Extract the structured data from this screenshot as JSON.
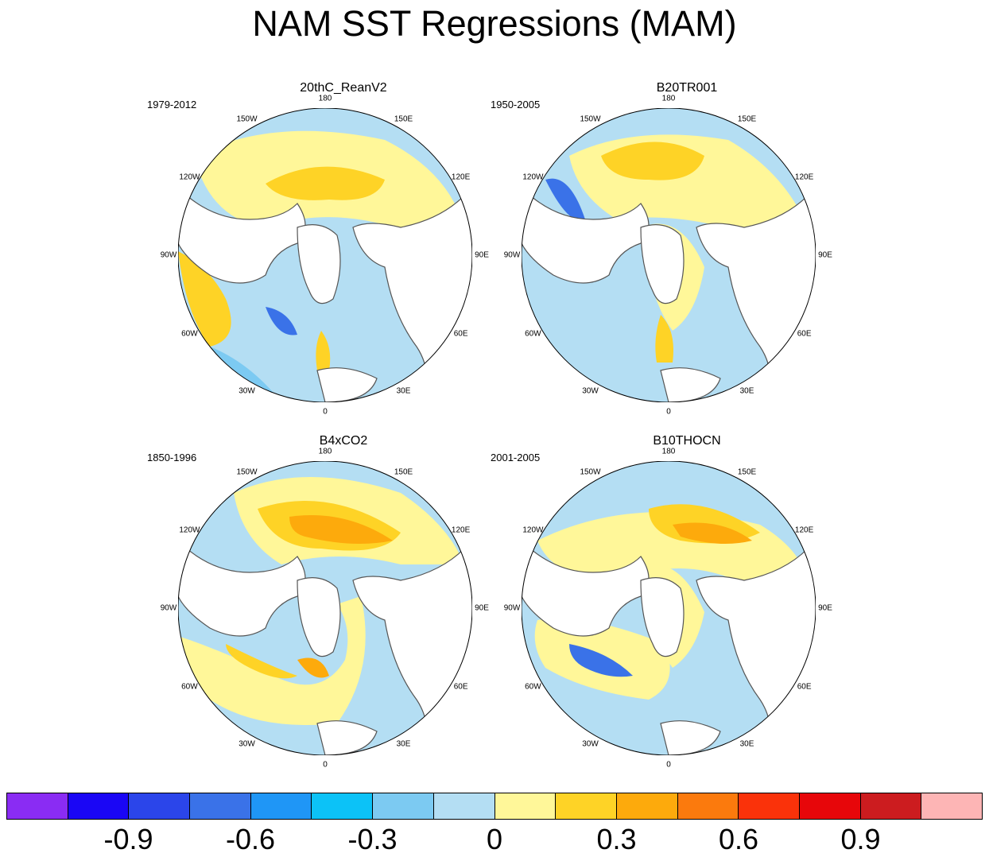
{
  "title": "NAM SST Regressions (MAM)",
  "panels": [
    {
      "name": "20thC_ReanV2",
      "period": "1979-2012"
    },
    {
      "name": "B20TR001",
      "period": "1950-2005"
    },
    {
      "name": "B4xCO2",
      "period": "1850-1996"
    },
    {
      "name": "B10THOCN",
      "period": "2001-2005"
    }
  ],
  "longitude_labels": {
    "lon_180": "180",
    "lon_150e": "150E",
    "lon_120e": "120E",
    "lon_90e": "90E",
    "lon_60e": "60E",
    "lon_30e": "30E",
    "lon_0": "0",
    "lon_30w": "30W",
    "lon_60w": "60W",
    "lon_90w": "90W",
    "lon_120w": "120W",
    "lon_150w": "150W"
  },
  "colorbar": {
    "colors": [
      "#8a2cf3",
      "#1a06f5",
      "#2b45ea",
      "#3a72e8",
      "#1f96f6",
      "#0cc2f7",
      "#7ccaf2",
      "#b4def3",
      "#fff799",
      "#fed326",
      "#fdaa0c",
      "#fb7a0d",
      "#fa320a",
      "#e7060a",
      "#cc1c1f",
      "#fdb5b5"
    ],
    "labels": [
      "-0.9",
      "-0.6",
      "-0.3",
      "0",
      "0.3",
      "0.6",
      "0.9"
    ]
  },
  "colors": {
    "ocean_light_blue": "#b4def3",
    "ocean_yellow": "#fff799",
    "ocean_gold": "#fed326",
    "ocean_orange": "#fdaa0c",
    "ocean_blue": "#7ccaf2",
    "ocean_deep_blue": "#3a72e8",
    "land": "#ffffff",
    "coast": "#555555"
  }
}
